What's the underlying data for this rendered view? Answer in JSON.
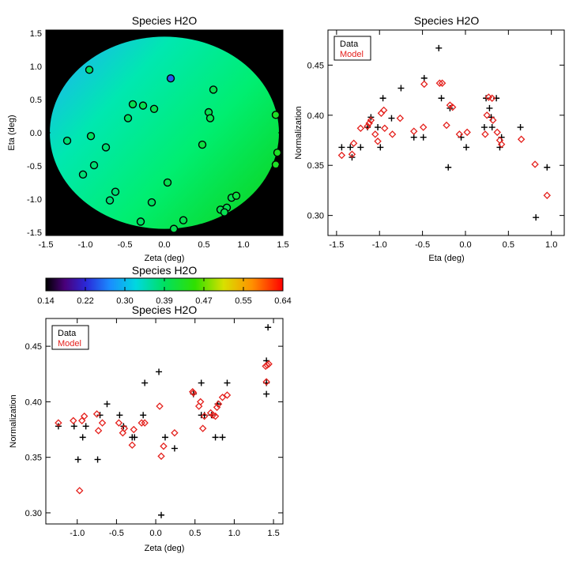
{
  "chart_data": [
    {
      "id": "map",
      "type": "heatmap",
      "title": "Species H2O",
      "xlabel": "Zeta (deg)",
      "ylabel": "Eta (deg)",
      "xlim": [
        -1.5,
        1.5
      ],
      "ylim": [
        -1.55,
        1.55
      ],
      "xticks": [
        "-1.5",
        "-1.0",
        "-0.5",
        "0.0",
        "0.5",
        "1.0",
        "1.5"
      ],
      "yticks": [
        "-1.5",
        "-1.0",
        "-0.5",
        "0.0",
        "0.5",
        "1.0",
        "1.5"
      ],
      "circle_radius_deg": 1.45,
      "background_color": "#000000",
      "map_gradient": [
        {
          "zeta": -1.45,
          "eta": 1.45,
          "value": 0.35
        },
        {
          "zeta": 1.45,
          "eta": -1.45,
          "value": 0.45
        }
      ],
      "points": [
        {
          "zeta": -0.95,
          "eta": 0.95,
          "value": 0.39
        },
        {
          "zeta": 0.08,
          "eta": 0.82,
          "value": 0.25
        },
        {
          "zeta": 0.62,
          "eta": 0.65,
          "value": 0.4
        },
        {
          "zeta": -0.4,
          "eta": 0.43,
          "value": 0.4
        },
        {
          "zeta": -0.27,
          "eta": 0.41,
          "value": 0.4
        },
        {
          "zeta": -0.13,
          "eta": 0.36,
          "value": 0.4
        },
        {
          "zeta": 0.56,
          "eta": 0.31,
          "value": 0.4
        },
        {
          "zeta": 1.41,
          "eta": 0.27,
          "value": 0.43
        },
        {
          "zeta": 0.58,
          "eta": 0.22,
          "value": 0.4
        },
        {
          "zeta": -0.46,
          "eta": 0.22,
          "value": 0.39
        },
        {
          "zeta": -0.93,
          "eta": -0.05,
          "value": 0.39
        },
        {
          "zeta": -1.23,
          "eta": -0.12,
          "value": 0.38
        },
        {
          "zeta": -0.74,
          "eta": -0.22,
          "value": 0.38
        },
        {
          "zeta": 0.48,
          "eta": -0.18,
          "value": 0.41
        },
        {
          "zeta": 1.43,
          "eta": -0.3,
          "value": 0.43
        },
        {
          "zeta": 1.41,
          "eta": -0.48,
          "value": 0.43
        },
        {
          "zeta": -0.89,
          "eta": -0.49,
          "value": 0.38
        },
        {
          "zeta": -1.03,
          "eta": -0.63,
          "value": 0.38
        },
        {
          "zeta": 0.04,
          "eta": -0.75,
          "value": 0.4
        },
        {
          "zeta": -0.62,
          "eta": -0.89,
          "value": 0.38
        },
        {
          "zeta": 0.85,
          "eta": -0.98,
          "value": 0.4
        },
        {
          "zeta": 0.91,
          "eta": -0.95,
          "value": 0.41
        },
        {
          "zeta": -0.69,
          "eta": -1.02,
          "value": 0.38
        },
        {
          "zeta": -0.16,
          "eta": -1.05,
          "value": 0.39
        },
        {
          "zeta": 0.71,
          "eta": -1.16,
          "value": 0.4
        },
        {
          "zeta": 0.79,
          "eta": -1.13,
          "value": 0.4
        },
        {
          "zeta": 0.76,
          "eta": -1.2,
          "value": 0.4
        },
        {
          "zeta": 0.24,
          "eta": -1.32,
          "value": 0.4
        },
        {
          "zeta": -0.3,
          "eta": -1.34,
          "value": 0.39
        },
        {
          "zeta": 0.12,
          "eta": -1.45,
          "value": 0.4
        }
      ]
    },
    {
      "id": "colorbar",
      "type": "heatmap",
      "title": "Species H2O",
      "range": [
        0.14,
        0.64
      ],
      "tick_labels": [
        "0.14",
        "0.22",
        "0.30",
        "0.39",
        "0.47",
        "0.55",
        "0.64"
      ]
    },
    {
      "id": "eta_scatter",
      "type": "scatter",
      "title": "Species H2O",
      "xlabel": "Eta (deg)",
      "ylabel": "Normalization",
      "xlim": [
        -1.6,
        1.15
      ],
      "ylim": [
        0.28,
        0.485
      ],
      "xticks": [
        "-1.5",
        "-1.0",
        "-0.5",
        "0.0",
        "0.5",
        "1.0"
      ],
      "yticks": [
        "0.30",
        "0.35",
        "0.40",
        "0.45"
      ],
      "legend": [
        "Data",
        "Model"
      ],
      "legend_position": "top-left",
      "series": [
        {
          "name": "Data",
          "marker": "plus",
          "color": "#000000",
          "points": [
            [
              -1.44,
              0.368
            ],
            [
              -1.34,
              0.368
            ],
            [
              -1.32,
              0.358
            ],
            [
              -1.22,
              0.368
            ],
            [
              -1.14,
              0.388
            ],
            [
              -1.1,
              0.398
            ],
            [
              -1.02,
              0.388
            ],
            [
              -0.99,
              0.368
            ],
            [
              -0.96,
              0.417
            ],
            [
              -0.86,
              0.397
            ],
            [
              -0.75,
              0.427
            ],
            [
              -0.6,
              0.378
            ],
            [
              -0.49,
              0.378
            ],
            [
              -0.48,
              0.437
            ],
            [
              -0.31,
              0.467
            ],
            [
              -0.28,
              0.417
            ],
            [
              -0.2,
              0.348
            ],
            [
              -0.18,
              0.407
            ],
            [
              -0.05,
              0.378
            ],
            [
              0.01,
              0.368
            ],
            [
              0.22,
              0.388
            ],
            [
              0.24,
              0.417
            ],
            [
              0.28,
              0.407
            ],
            [
              0.3,
              0.398
            ],
            [
              0.31,
              0.388
            ],
            [
              0.36,
              0.417
            ],
            [
              0.4,
              0.368
            ],
            [
              0.42,
              0.378
            ],
            [
              0.64,
              0.388
            ],
            [
              0.82,
              0.298
            ],
            [
              0.95,
              0.348
            ]
          ]
        },
        {
          "name": "Model",
          "marker": "diamond",
          "color": "#e4201c",
          "points": [
            [
              -1.44,
              0.36
            ],
            [
              -1.32,
              0.361
            ],
            [
              -1.3,
              0.372
            ],
            [
              -1.22,
              0.387
            ],
            [
              -1.14,
              0.389
            ],
            [
              -1.12,
              0.392
            ],
            [
              -1.1,
              0.395
            ],
            [
              -1.05,
              0.381
            ],
            [
              -1.02,
              0.374
            ],
            [
              -0.98,
              0.402
            ],
            [
              -0.95,
              0.405
            ],
            [
              -0.94,
              0.387
            ],
            [
              -0.85,
              0.381
            ],
            [
              -0.76,
              0.397
            ],
            [
              -0.6,
              0.384
            ],
            [
              -0.49,
              0.388
            ],
            [
              -0.48,
              0.431
            ],
            [
              -0.3,
              0.432
            ],
            [
              -0.27,
              0.432
            ],
            [
              -0.22,
              0.39
            ],
            [
              -0.18,
              0.41
            ],
            [
              -0.15,
              0.408
            ],
            [
              -0.07,
              0.381
            ],
            [
              0.02,
              0.383
            ],
            [
              0.23,
              0.381
            ],
            [
              0.25,
              0.4
            ],
            [
              0.27,
              0.418
            ],
            [
              0.31,
              0.417
            ],
            [
              0.32,
              0.395
            ],
            [
              0.37,
              0.383
            ],
            [
              0.4,
              0.375
            ],
            [
              0.42,
              0.371
            ],
            [
              0.65,
              0.376
            ],
            [
              0.81,
              0.351
            ],
            [
              0.95,
              0.32
            ]
          ]
        }
      ]
    },
    {
      "id": "zeta_scatter",
      "type": "scatter",
      "title": "Species H2O",
      "xlabel": "Zeta (deg)",
      "ylabel": "Normalization",
      "xlim": [
        -1.4,
        1.62
      ],
      "ylim": [
        0.29,
        0.475
      ],
      "xticks": [
        "-1.0",
        "-0.5",
        "0.0",
        "0.5",
        "1.0",
        "1.5"
      ],
      "yticks": [
        "0.30",
        "0.35",
        "0.40",
        "0.45"
      ],
      "legend": [
        "Data",
        "Model"
      ],
      "legend_position": "top-left",
      "series": [
        {
          "name": "Data",
          "marker": "plus",
          "color": "#000000",
          "points": [
            [
              -1.24,
              0.378
            ],
            [
              -1.04,
              0.378
            ],
            [
              -0.99,
              0.348
            ],
            [
              -0.93,
              0.368
            ],
            [
              -0.89,
              0.378
            ],
            [
              -0.74,
              0.348
            ],
            [
              -0.71,
              0.388
            ],
            [
              -0.62,
              0.398
            ],
            [
              -0.46,
              0.388
            ],
            [
              -0.41,
              0.378
            ],
            [
              -0.3,
              0.368
            ],
            [
              -0.27,
              0.368
            ],
            [
              -0.16,
              0.388
            ],
            [
              -0.14,
              0.417
            ],
            [
              0.04,
              0.427
            ],
            [
              0.07,
              0.298
            ],
            [
              0.12,
              0.368
            ],
            [
              0.24,
              0.358
            ],
            [
              0.48,
              0.407
            ],
            [
              0.58,
              0.388
            ],
            [
              0.58,
              0.417
            ],
            [
              0.62,
              0.388
            ],
            [
              0.71,
              0.388
            ],
            [
              0.76,
              0.368
            ],
            [
              0.79,
              0.398
            ],
            [
              0.85,
              0.368
            ],
            [
              0.91,
              0.417
            ],
            [
              1.41,
              0.437
            ],
            [
              1.41,
              0.417
            ],
            [
              1.41,
              0.407
            ],
            [
              1.43,
              0.467
            ]
          ]
        },
        {
          "name": "Model",
          "marker": "diamond",
          "color": "#e4201c",
          "points": [
            [
              -1.24,
              0.381
            ],
            [
              -1.05,
              0.383
            ],
            [
              -0.97,
              0.32
            ],
            [
              -0.94,
              0.383
            ],
            [
              -0.91,
              0.387
            ],
            [
              -0.75,
              0.389
            ],
            [
              -0.73,
              0.374
            ],
            [
              -0.68,
              0.381
            ],
            [
              -0.47,
              0.381
            ],
            [
              -0.42,
              0.372
            ],
            [
              -0.4,
              0.376
            ],
            [
              -0.3,
              0.361
            ],
            [
              -0.28,
              0.375
            ],
            [
              -0.18,
              0.381
            ],
            [
              -0.14,
              0.381
            ],
            [
              0.05,
              0.396
            ],
            [
              0.07,
              0.351
            ],
            [
              0.1,
              0.36
            ],
            [
              0.24,
              0.372
            ],
            [
              0.47,
              0.409
            ],
            [
              0.48,
              0.408
            ],
            [
              0.55,
              0.396
            ],
            [
              0.57,
              0.4
            ],
            [
              0.6,
              0.376
            ],
            [
              0.62,
              0.387
            ],
            [
              0.7,
              0.39
            ],
            [
              0.73,
              0.388
            ],
            [
              0.76,
              0.387
            ],
            [
              0.78,
              0.395
            ],
            [
              0.8,
              0.398
            ],
            [
              0.85,
              0.404
            ],
            [
              0.91,
              0.406
            ],
            [
              1.4,
              0.432
            ],
            [
              1.41,
              0.418
            ],
            [
              1.42,
              0.433
            ],
            [
              1.44,
              0.434
            ]
          ]
        }
      ]
    }
  ]
}
